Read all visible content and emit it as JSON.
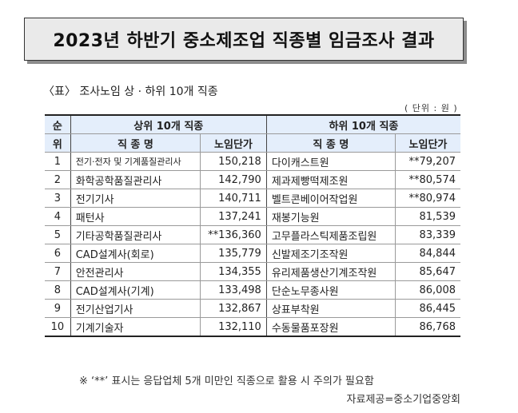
{
  "title": "2023년 하반기 중소제조업 직종별 임금조사 결과",
  "caption": "〈표〉 조사노임 상 · 하위 10개 직종",
  "unit": "( 단위 : 원 )",
  "headers": {
    "rank_line1": "순",
    "rank_line2": "위",
    "top_group": "상위 10개 직종",
    "bottom_group": "하위 10개 직종",
    "job_name": "직 종 명",
    "wage": "노임단가"
  },
  "rows": [
    {
      "rank": "1",
      "top_name": "전기·전자 및 기계품질관리사",
      "top_wage": "150,218",
      "bottom_name": "다이캐스트원",
      "bottom_wage": "**79,207"
    },
    {
      "rank": "2",
      "top_name": "화학공학품질관리사",
      "top_wage": "142,790",
      "bottom_name": "제과제빵떡제조원",
      "bottom_wage": "**80,574"
    },
    {
      "rank": "3",
      "top_name": "전기기사",
      "top_wage": "140,711",
      "bottom_name": "벨트콘베이어작업원",
      "bottom_wage": "**80,974"
    },
    {
      "rank": "4",
      "top_name": "패턴사",
      "top_wage": "137,241",
      "bottom_name": "재봉기능원",
      "bottom_wage": "81,539"
    },
    {
      "rank": "5",
      "top_name": "기타공학품질관리사",
      "top_wage": "**136,360",
      "bottom_name": "고무플라스틱제품조립원",
      "bottom_wage": "83,339"
    },
    {
      "rank": "6",
      "top_name": "CAD설계사(회로)",
      "top_wage": "135,779",
      "bottom_name": "신발제조기조작원",
      "bottom_wage": "84,844"
    },
    {
      "rank": "7",
      "top_name": "안전관리사",
      "top_wage": "134,355",
      "bottom_name": "유리제품생산기계조작원",
      "bottom_wage": "85,647"
    },
    {
      "rank": "8",
      "top_name": "CAD설계사(기계)",
      "top_wage": "133,498",
      "bottom_name": "단순노무종사원",
      "bottom_wage": "86,008"
    },
    {
      "rank": "9",
      "top_name": "전기산업기사",
      "top_wage": "132,867",
      "bottom_name": "상표부착원",
      "bottom_wage": "86,445"
    },
    {
      "rank": "10",
      "top_name": "기계기술자",
      "top_wage": "132,110",
      "bottom_name": "수동물품포장원",
      "bottom_wage": "86,768"
    }
  ],
  "note": "※ ‘**’ 표시는 응답업체 5개 미만인 직종으로 활용 시 주의가 필요함",
  "source": "자료제공=중소기업중앙회"
}
